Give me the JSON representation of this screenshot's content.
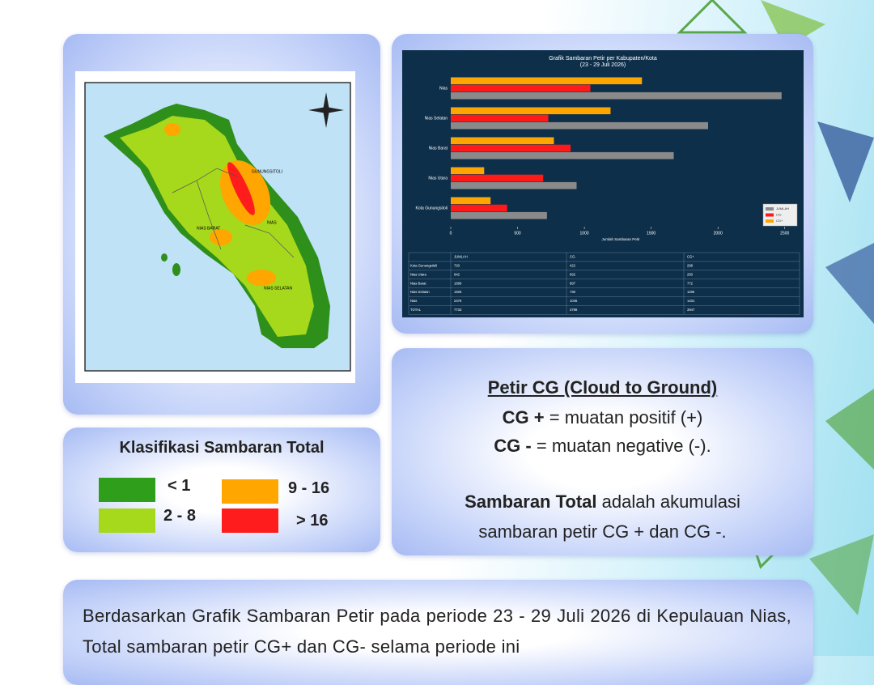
{
  "chart_data": {
    "type": "bar",
    "orientation": "horizontal",
    "title": "Grafik Sambaran Petir per Kabupaten/Kota",
    "subtitle": "(23 - 29 Juli 2026)",
    "x_label": "Jumlah Sambaran Petir",
    "categories": [
      "Nias",
      "Nias Selatan",
      "Nias Barat",
      "Nias Utara",
      "Kota Gunungsitoli"
    ],
    "series": [
      {
        "name": "CG+",
        "color": "#ffa500",
        "values": [
          1431,
          1196,
          772,
          250,
          298
        ]
      },
      {
        "name": "CG-",
        "color": "#ff1a1a",
        "values": [
          1045,
          730,
          897,
          692,
          422
        ]
      },
      {
        "name": "JUMLAH",
        "color": "#8a8a8a",
        "values": [
          2476,
          1926,
          1669,
          942,
          720
        ]
      }
    ],
    "xlim": [
      0,
      2550
    ],
    "xticks": [
      0,
      500,
      1000,
      1500,
      2000,
      2500
    ],
    "legend": "lower right"
  },
  "table": {
    "columns": [
      "JUMLAH",
      "CG-",
      "CG+"
    ],
    "rows": [
      [
        "Kota Gunungsitoli",
        720,
        422,
        298
      ],
      [
        "Nias Utara",
        942,
        692,
        250
      ],
      [
        "Nias Barat",
        1669,
        897,
        772
      ],
      [
        "Nias Selatan",
        1926,
        730,
        1196
      ],
      [
        "Nias",
        2476,
        1045,
        1431
      ],
      [
        "TOTAL",
        7733,
        3786,
        3947
      ]
    ]
  },
  "map": {
    "labels": [
      "GUNUNGSITOLI",
      "NIAS BARAT",
      "NIAS",
      "NIAS SELATAN"
    ]
  },
  "classification": {
    "title": "Klasifikasi Sambaran Total",
    "items": [
      {
        "label": "< 1",
        "color": "#2f9e1b"
      },
      {
        "label": "2 - 8",
        "color": "#a6d81c"
      },
      {
        "label": "9 - 16",
        "color": "#ffa600"
      },
      {
        "label": "> 16",
        "color": "#ff1c1c"
      }
    ]
  },
  "info": {
    "title": "Petir CG (Cloud to Ground)",
    "items": [
      {
        "term": "CG +",
        "desc": "= muatan positif (+)"
      },
      {
        "term": "CG -",
        "desc": "= muatan negative (-)."
      }
    ],
    "note_term": "Sambaran Total",
    "note_1": "adalah akumulasi",
    "note_2": "sambaran petir CG + dan CG -."
  },
  "summary": "Berdasarkan Grafik Sambaran Petir pada periode 23 - 29 Juli 2026 di Kepulauan Nias, Total sambaran petir CG+ dan CG- selama periode ini"
}
